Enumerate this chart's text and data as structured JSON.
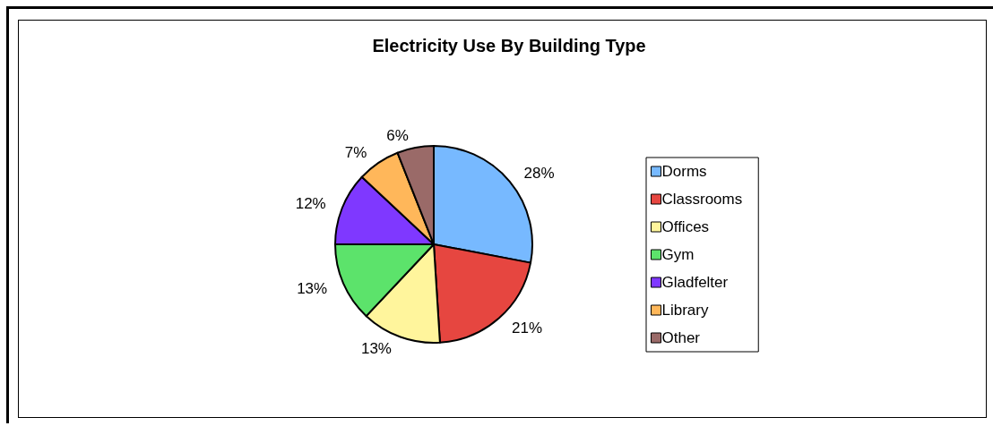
{
  "chart_data": {
    "type": "pie",
    "title": "Electricity Use By Building Type",
    "categories": [
      "Dorms",
      "Classrooms",
      "Offices",
      "Gym",
      "Gladfelter",
      "Library",
      "Other"
    ],
    "values": [
      28,
      21,
      13,
      13,
      12,
      7,
      6
    ],
    "colors": [
      "#77b9ff",
      "#e64640",
      "#fff59c",
      "#5ce36b",
      "#7f38ff",
      "#ffb75a",
      "#9a6a68"
    ],
    "value_labels": [
      "28%",
      "21%",
      "13%",
      "13%",
      "12%",
      "7%",
      "6%"
    ],
    "legend": "right"
  }
}
